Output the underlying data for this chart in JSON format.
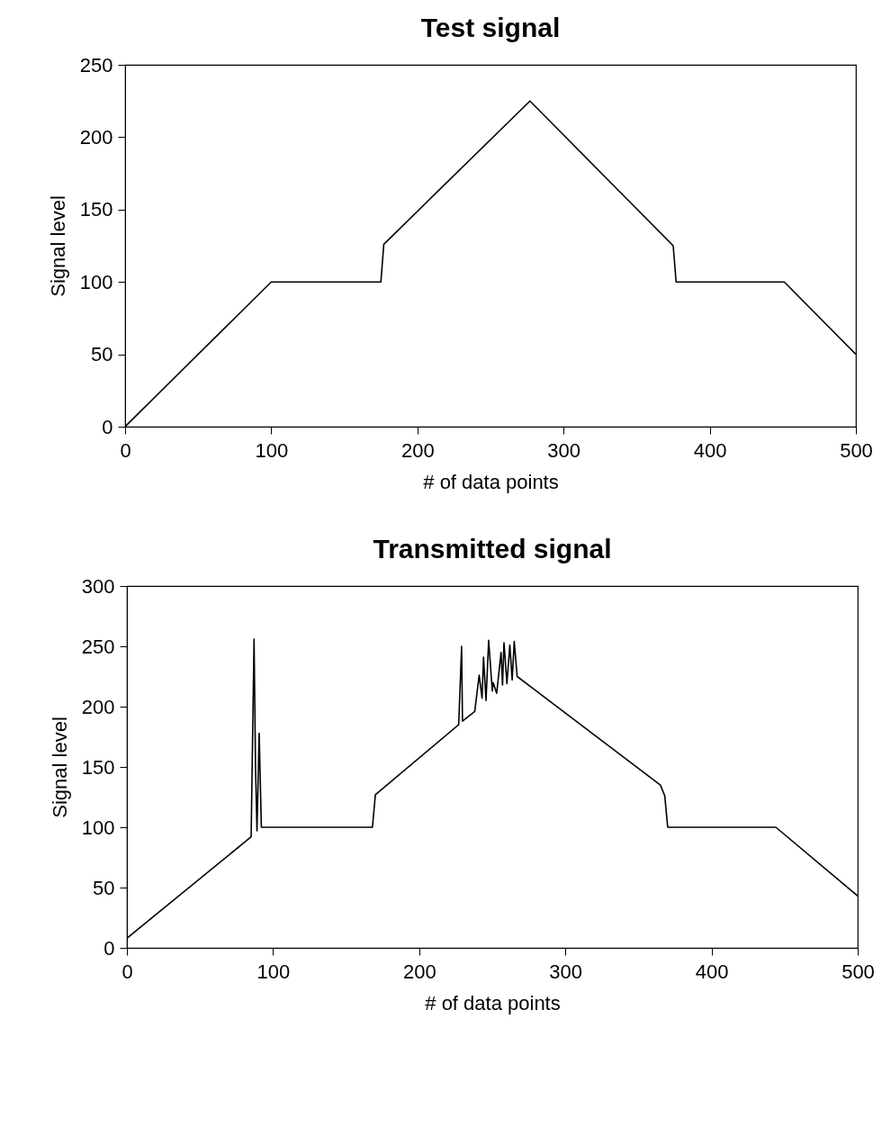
{
  "chart_data": [
    {
      "type": "line",
      "title": "Test signal",
      "xlabel": "# of data points",
      "ylabel": "Signal level",
      "xlim": [
        0,
        500
      ],
      "ylim": [
        0,
        250
      ],
      "xticks": [
        0,
        100,
        200,
        300,
        400,
        500
      ],
      "yticks": [
        0,
        50,
        100,
        150,
        200,
        250
      ],
      "series": [
        {
          "color": "#000000",
          "x": [
            0,
            100,
            175,
            177,
            277,
            375,
            377,
            451,
            500
          ],
          "values": [
            0,
            100,
            100,
            126,
            225,
            125,
            100,
            100,
            50
          ]
        }
      ]
    },
    {
      "type": "line",
      "title": "Transmitted signal",
      "xlabel": "# of data points",
      "ylabel": "Signal level",
      "xlim": [
        0,
        500
      ],
      "ylim": [
        0,
        300
      ],
      "xticks": [
        0,
        100,
        200,
        300,
        400,
        500
      ],
      "yticks": [
        0,
        50,
        100,
        150,
        200,
        250,
        300
      ],
      "series": [
        {
          "color": "#000000",
          "x": [
            0,
            85,
            87,
            88,
            89,
            90.5,
            92,
            168,
            170,
            227,
            229,
            229.6,
            238,
            241,
            243,
            244,
            245.7,
            247.5,
            250,
            250.6,
            253,
            256,
            257,
            258,
            260,
            262,
            263.6,
            265,
            267,
            365,
            368,
            370,
            444,
            500
          ],
          "values": [
            8,
            92,
            256,
            150,
            97,
            178,
            100,
            100,
            127,
            185,
            250,
            188,
            196,
            226,
            207,
            241,
            205,
            255,
            213,
            220,
            211,
            245,
            218,
            253,
            219,
            251,
            222,
            254,
            225,
            135,
            126,
            100,
            100,
            43
          ]
        }
      ]
    }
  ]
}
